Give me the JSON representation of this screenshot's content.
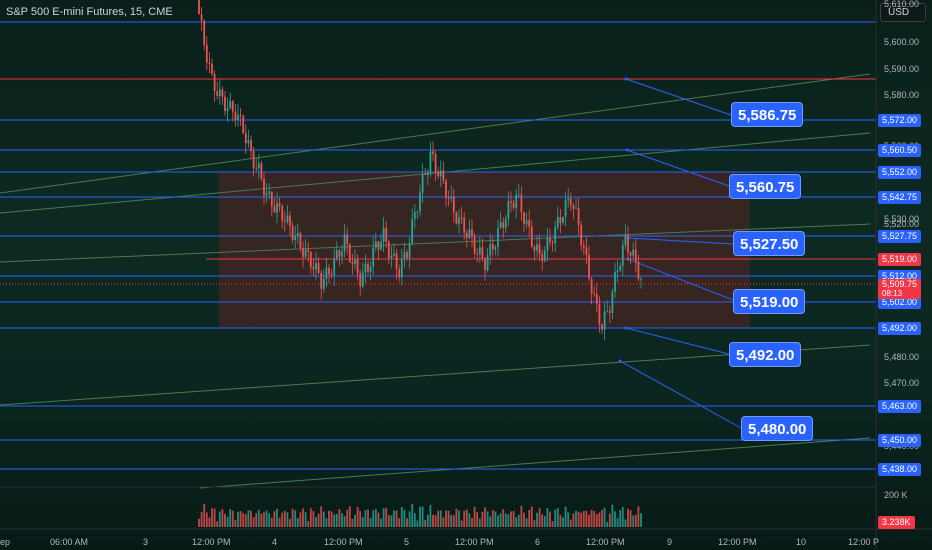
{
  "header": {
    "title": "S&P 500 E-mini Futures, 15, CME",
    "currency": "USD"
  },
  "colors": {
    "blue_line": "#2962ff",
    "red_line": "#f23645",
    "green_line": "#4a7a4a",
    "up_candle": "#26a69a",
    "down_candle": "#ef5350",
    "zone": "#4a1f1f"
  },
  "price_axis": {
    "ticks": [
      "5,610.00",
      "5,600.00",
      "5,590.00",
      "5,580.00",
      "5,560.00",
      "5,550.00",
      "5,540.00",
      "5,530.00",
      "5,520.00",
      "5,490.00",
      "5,480.00",
      "5,470.00",
      "5,460.00",
      "5,440.00"
    ],
    "ylim": [
      5432,
      5614
    ],
    "volume_label": "200 K"
  },
  "horizontal_levels": [
    {
      "price": 5610.0,
      "label": "",
      "color": "blue"
    },
    {
      "price": 5587.0,
      "label": "",
      "color": "red"
    },
    {
      "price": 5572.0,
      "label": "5,572.00",
      "color": "blue"
    },
    {
      "price": 5560.5,
      "label": "5,560.50",
      "color": "blue"
    },
    {
      "price": 5552.0,
      "label": "5,552.00",
      "color": "blue"
    },
    {
      "price": 5542.75,
      "label": "5,542.75",
      "color": "blue"
    },
    {
      "price": 5527.75,
      "label": "5,527.75",
      "color": "blue"
    },
    {
      "price": 5519.0,
      "label": "5,519.00",
      "color": "red"
    },
    {
      "price": 5512.0,
      "label": "5,512.00",
      "color": "blue"
    },
    {
      "price": 5502.0,
      "label": "5,502.00",
      "color": "blue"
    },
    {
      "price": 5492.0,
      "label": "5,492.00",
      "color": "blue"
    },
    {
      "price": 5463.0,
      "label": "5,463.00",
      "color": "blue"
    },
    {
      "price": 5450.0,
      "label": "5,450.00",
      "color": "blue"
    },
    {
      "price": 5438.0,
      "label": "5,438.00",
      "color": "blue"
    }
  ],
  "current_price": {
    "value": "5,509.75",
    "sub": "08:13"
  },
  "volume_current": "3.238K",
  "callouts": [
    "5,586.75",
    "5,560.75",
    "5,527.50",
    "5,519.00",
    "5,492.00",
    "5,480.00"
  ],
  "time_axis": [
    "ep",
    "06:00 AM",
    "3",
    "12:00 PM",
    "4",
    "12:00 PM",
    "5",
    "12:00 PM",
    "6",
    "12:00 PM",
    "9",
    "12:00 PM",
    "10",
    "12:00 P"
  ],
  "chart_data": {
    "type": "candlestick",
    "title": "S&P 500 E-mini Futures, 15, CME",
    "ylim": [
      5432,
      5614
    ],
    "x_labels": [
      "06:00 AM",
      "3",
      "12:00 PM",
      "4",
      "12:00 PM",
      "5",
      "12:00 PM"
    ],
    "close_path": [
      [
        0,
        5614
      ],
      [
        2,
        5598
      ],
      [
        4,
        5584
      ],
      [
        6,
        5578
      ],
      [
        8,
        5574
      ],
      [
        10,
        5572
      ],
      [
        12,
        5566
      ],
      [
        14,
        5556
      ],
      [
        16,
        5550
      ],
      [
        18,
        5541
      ],
      [
        20,
        5537
      ],
      [
        22,
        5534
      ],
      [
        24,
        5529
      ],
      [
        26,
        5524
      ],
      [
        28,
        5519
      ],
      [
        30,
        5515
      ],
      [
        32,
        5509
      ],
      [
        34,
        5512
      ],
      [
        36,
        5518
      ],
      [
        38,
        5524
      ],
      [
        40,
        5516
      ],
      [
        42,
        5510
      ],
      [
        44,
        5514
      ],
      [
        46,
        5522
      ],
      [
        48,
        5526
      ],
      [
        50,
        5518
      ],
      [
        52,
        5513
      ],
      [
        54,
        5520
      ],
      [
        56,
        5534
      ],
      [
        58,
        5546
      ],
      [
        60,
        5556
      ],
      [
        62,
        5550
      ],
      [
        64,
        5543
      ],
      [
        66,
        5535
      ],
      [
        68,
        5530
      ],
      [
        70,
        5526
      ],
      [
        72,
        5520
      ],
      [
        74,
        5516
      ],
      [
        76,
        5522
      ],
      [
        78,
        5529
      ],
      [
        80,
        5536
      ],
      [
        82,
        5541
      ],
      [
        84,
        5533
      ],
      [
        86,
        5524
      ],
      [
        88,
        5518
      ],
      [
        90,
        5522
      ],
      [
        92,
        5528
      ],
      [
        94,
        5535
      ],
      [
        96,
        5540
      ],
      [
        98,
        5530
      ],
      [
        100,
        5516
      ],
      [
        102,
        5502
      ],
      [
        104,
        5492
      ],
      [
        106,
        5500
      ],
      [
        108,
        5514
      ],
      [
        110,
        5524
      ],
      [
        112,
        5518
      ],
      [
        114,
        5510
      ]
    ]
  }
}
